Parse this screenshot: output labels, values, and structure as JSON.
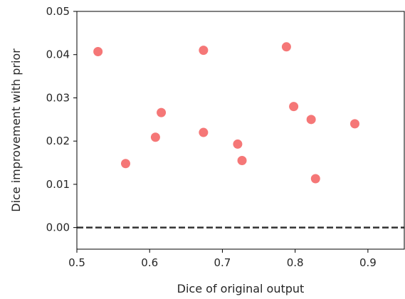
{
  "chart_data": {
    "type": "scatter",
    "xlabel": "Dice of original output",
    "ylabel": "Dice improvement with prior",
    "xlim": [
      0.5,
      0.95
    ],
    "ylim": [
      -0.005,
      0.05
    ],
    "xticks": [
      "0.5",
      "0.6",
      "0.7",
      "0.8",
      "0.9"
    ],
    "yticks": [
      "0.00",
      "0.01",
      "0.02",
      "0.03",
      "0.04",
      "0.05"
    ],
    "grid": false,
    "reference_line": {
      "y": 0.0,
      "style": "dashed",
      "color": "#333333"
    },
    "marker_color": "#f47070",
    "points": [
      {
        "x": 0.529,
        "y": 0.0407
      },
      {
        "x": 0.567,
        "y": 0.0148
      },
      {
        "x": 0.608,
        "y": 0.0209
      },
      {
        "x": 0.616,
        "y": 0.0266
      },
      {
        "x": 0.674,
        "y": 0.041
      },
      {
        "x": 0.674,
        "y": 0.022
      },
      {
        "x": 0.721,
        "y": 0.0193
      },
      {
        "x": 0.727,
        "y": 0.0155
      },
      {
        "x": 0.788,
        "y": 0.0418
      },
      {
        "x": 0.798,
        "y": 0.028
      },
      {
        "x": 0.822,
        "y": 0.025
      },
      {
        "x": 0.828,
        "y": 0.0113
      },
      {
        "x": 0.882,
        "y": 0.024
      }
    ]
  }
}
